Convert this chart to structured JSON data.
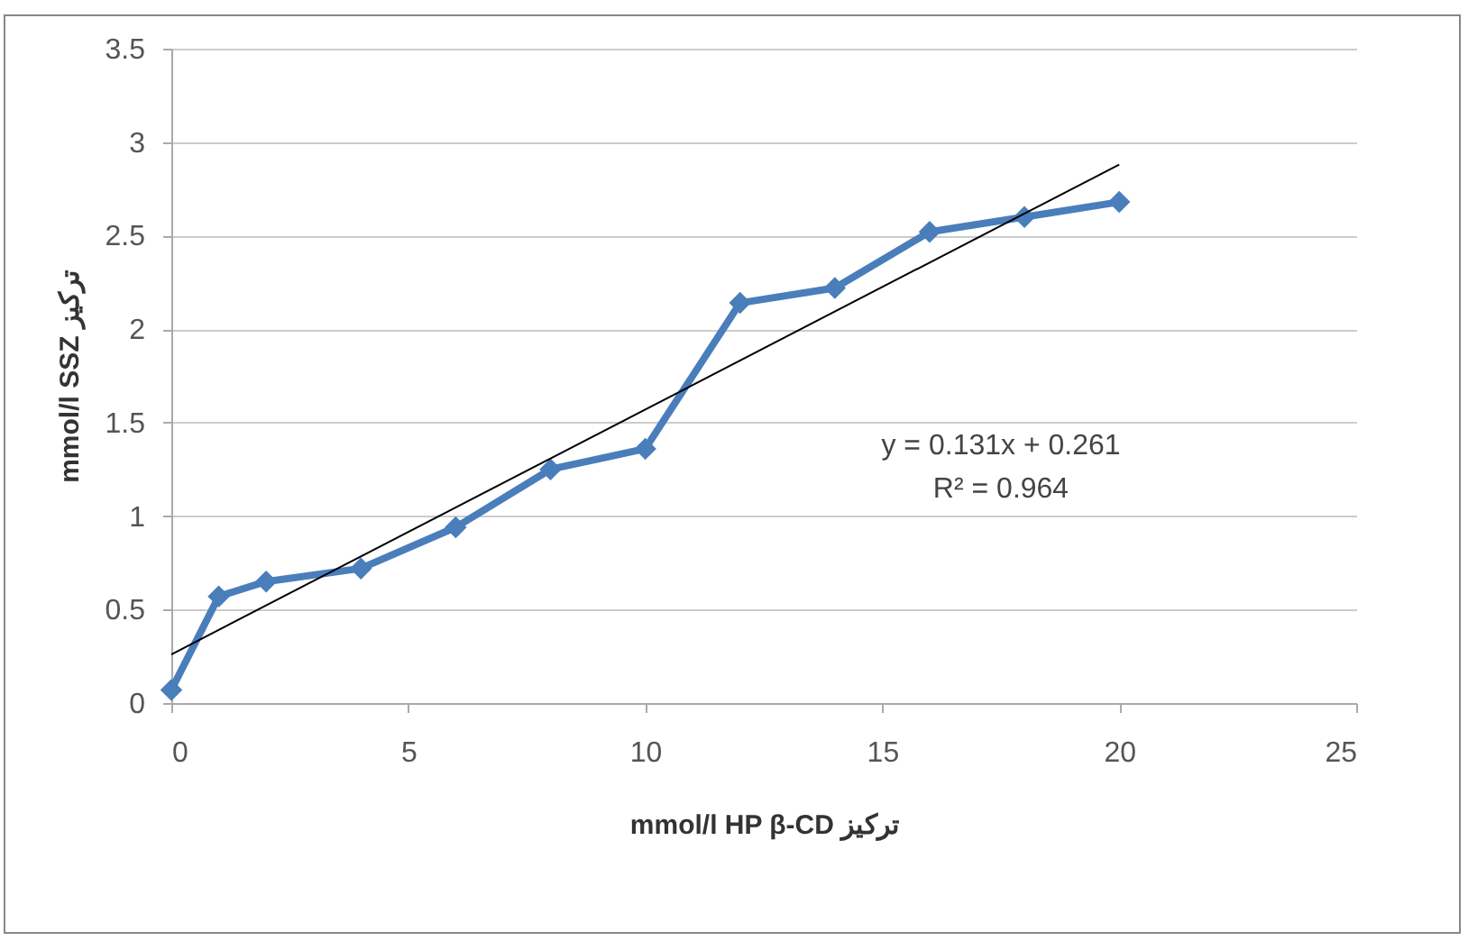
{
  "chart_data": {
    "type": "line",
    "xlabel": "mmol/l HP β-CD تركيز",
    "ylabel": "mmol/l SSZ تركيز",
    "xlim": [
      0,
      25
    ],
    "xticks": [
      0,
      5,
      10,
      15,
      20,
      25
    ],
    "ylim": [
      0,
      3.5
    ],
    "yticks": [
      0,
      0.5,
      1,
      1.5,
      2,
      2.5,
      3,
      3.5
    ],
    "grid": "y",
    "marker": "diamond",
    "line_style": "solid",
    "annotations": [
      "y = 0.131x + 0.261",
      "R² = 0.964"
    ],
    "series": [
      {
        "type": "line",
        "color": "#4a7ebb",
        "x": [
          0,
          1,
          2,
          4,
          6,
          8,
          10,
          12,
          14,
          16,
          18,
          20
        ],
        "values": [
          0.07,
          0.57,
          0.65,
          0.72,
          0.94,
          1.25,
          1.36,
          2.14,
          2.22,
          2.52,
          2.6,
          2.68
        ]
      },
      {
        "type": "line",
        "color": "#000000",
        "marker": "none",
        "x": [
          0,
          20
        ],
        "values": [
          0.26,
          2.88
        ]
      }
    ]
  }
}
